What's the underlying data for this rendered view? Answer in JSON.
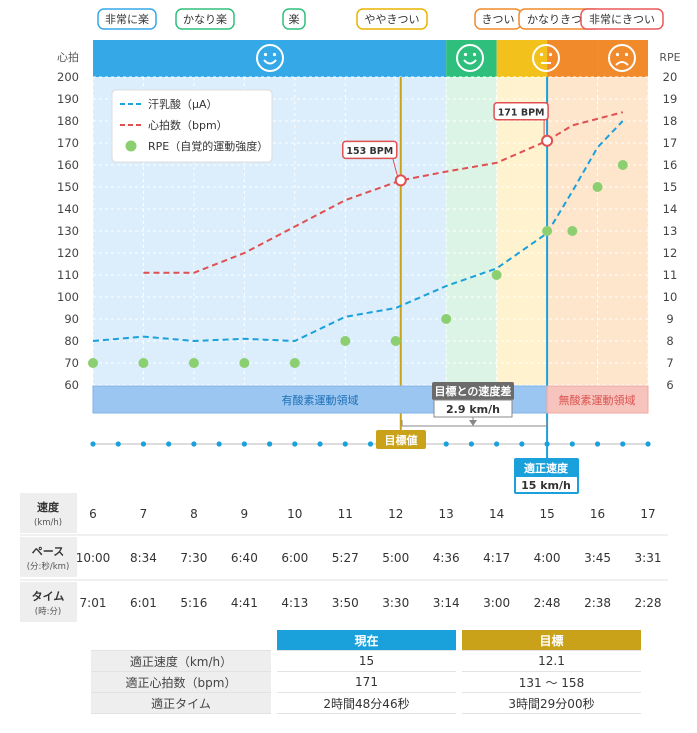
{
  "zones": [
    {
      "label": "非常に楽",
      "color": "#35a9e8"
    },
    {
      "label": "かなり楽",
      "color": "#2fbf7c"
    },
    {
      "label": "楽",
      "color": "#2fbf7c"
    },
    {
      "label": "ややきつい",
      "color": "#e8b400"
    },
    {
      "label": "きつい",
      "color": "#f08a2b"
    },
    {
      "label": "かなりきつい",
      "color": "#f08a2b"
    },
    {
      "label": "非常にきつい",
      "color": "#ea5a5a"
    }
  ],
  "chart_data": {
    "type": "line",
    "left_axis_label": "心拍",
    "right_axis_label": "RPE",
    "y_left_range": [
      60,
      200
    ],
    "y_left_ticks": [
      "60",
      "70",
      "80",
      "90",
      "100",
      "110",
      "120",
      "130",
      "140",
      "150",
      "160",
      "170",
      "180",
      "190",
      "200"
    ],
    "y_right_range": [
      6,
      20
    ],
    "y_right_ticks": [
      "6",
      "7",
      "8",
      "9",
      "10",
      "11",
      "12",
      "13",
      "14",
      "15",
      "16",
      "17",
      "18",
      "19",
      "20"
    ],
    "x_range": [
      6,
      17
    ],
    "x_ticks": [
      "6",
      "7",
      "8",
      "9",
      "10",
      "11",
      "12",
      "13",
      "14",
      "15",
      "16",
      "17"
    ],
    "legend": [
      "汗乳酸（μA）",
      "心拍数（bpm）",
      "RPE（自覚的運動強度）"
    ],
    "series": [
      {
        "name": "汗乳酸（μA）",
        "color": "#1aa0db",
        "style": "dashed",
        "x": [
          6,
          7,
          8,
          9,
          10,
          11,
          12,
          13,
          14,
          15,
          15.5,
          16,
          16.5
        ],
        "y": [
          80,
          82,
          80,
          81,
          80,
          91,
          95,
          105,
          113,
          129,
          148,
          168,
          180
        ]
      },
      {
        "name": "心拍数（bpm）",
        "color": "#e05050",
        "style": "dashed",
        "x": [
          7,
          8,
          9,
          10,
          11,
          12.1,
          13,
          14,
          15,
          15.5,
          16,
          16.5
        ],
        "y": [
          111,
          111,
          120,
          132,
          144,
          153,
          157,
          161,
          171,
          178,
          181,
          184
        ]
      },
      {
        "name": "RPE（自覚的運動強度）",
        "color": "#8ccf70",
        "style": "points",
        "x": [
          6,
          7,
          8,
          9,
          10,
          11,
          12,
          13,
          14,
          15,
          15.5,
          16,
          16.5
        ],
        "y": [
          7,
          7,
          7,
          7,
          7,
          8,
          8,
          9,
          11,
          13,
          13,
          15,
          16
        ]
      }
    ],
    "callouts": [
      {
        "label": "153 BPM",
        "x": 12.1,
        "y": 153
      },
      {
        "label": "171 BPM",
        "x": 15,
        "y": 171
      }
    ],
    "bands": [
      {
        "label": "有酸素運動領域",
        "from": 6,
        "to": 15
      },
      {
        "label": "無酸素運動領域",
        "from": 15,
        "to": 17
      }
    ],
    "markers": [
      {
        "label": "目標値",
        "x": 12.1
      },
      {
        "label": "適正速度",
        "value": "15 km/h",
        "x": 15
      }
    ],
    "speed_diff": {
      "label": "目標との速度差",
      "value": "2.9 km/h"
    },
    "rows": [
      {
        "title": "速度",
        "sub": "(km/h)",
        "values": [
          "6",
          "7",
          "8",
          "9",
          "10",
          "11",
          "12",
          "13",
          "14",
          "15",
          "16",
          "17"
        ]
      },
      {
        "title": "ペース",
        "sub": "(分:秒/km)",
        "values": [
          "10:00",
          "8:34",
          "7:30",
          "6:40",
          "6:00",
          "5:27",
          "5:00",
          "4:36",
          "4:17",
          "4:00",
          "3:45",
          "3:31"
        ]
      },
      {
        "title": "タイム",
        "sub": "(時:分)",
        "values": [
          "7:01",
          "6:01",
          "5:16",
          "4:41",
          "4:13",
          "3:50",
          "3:30",
          "3:14",
          "3:00",
          "2:48",
          "2:38",
          "2:28"
        ]
      }
    ]
  },
  "table": {
    "col_current": "現在",
    "col_target": "目標",
    "rows": [
      {
        "label": "適正速度（km/h）",
        "current": "15",
        "target": "12.1"
      },
      {
        "label": "適正心拍数（bpm）",
        "current": "171",
        "target": "131 ～ 158"
      },
      {
        "label": "適正タイム",
        "current": "2時間48分46秒",
        "target": "3時間29分00秒"
      }
    ]
  },
  "colors": {
    "blue": "#1aa0db",
    "red": "#e05050",
    "green": "#8ccf70",
    "gold": "#c9a21a",
    "aerobic": "#9cc6f2",
    "anaerobic": "#f7c3bd"
  }
}
